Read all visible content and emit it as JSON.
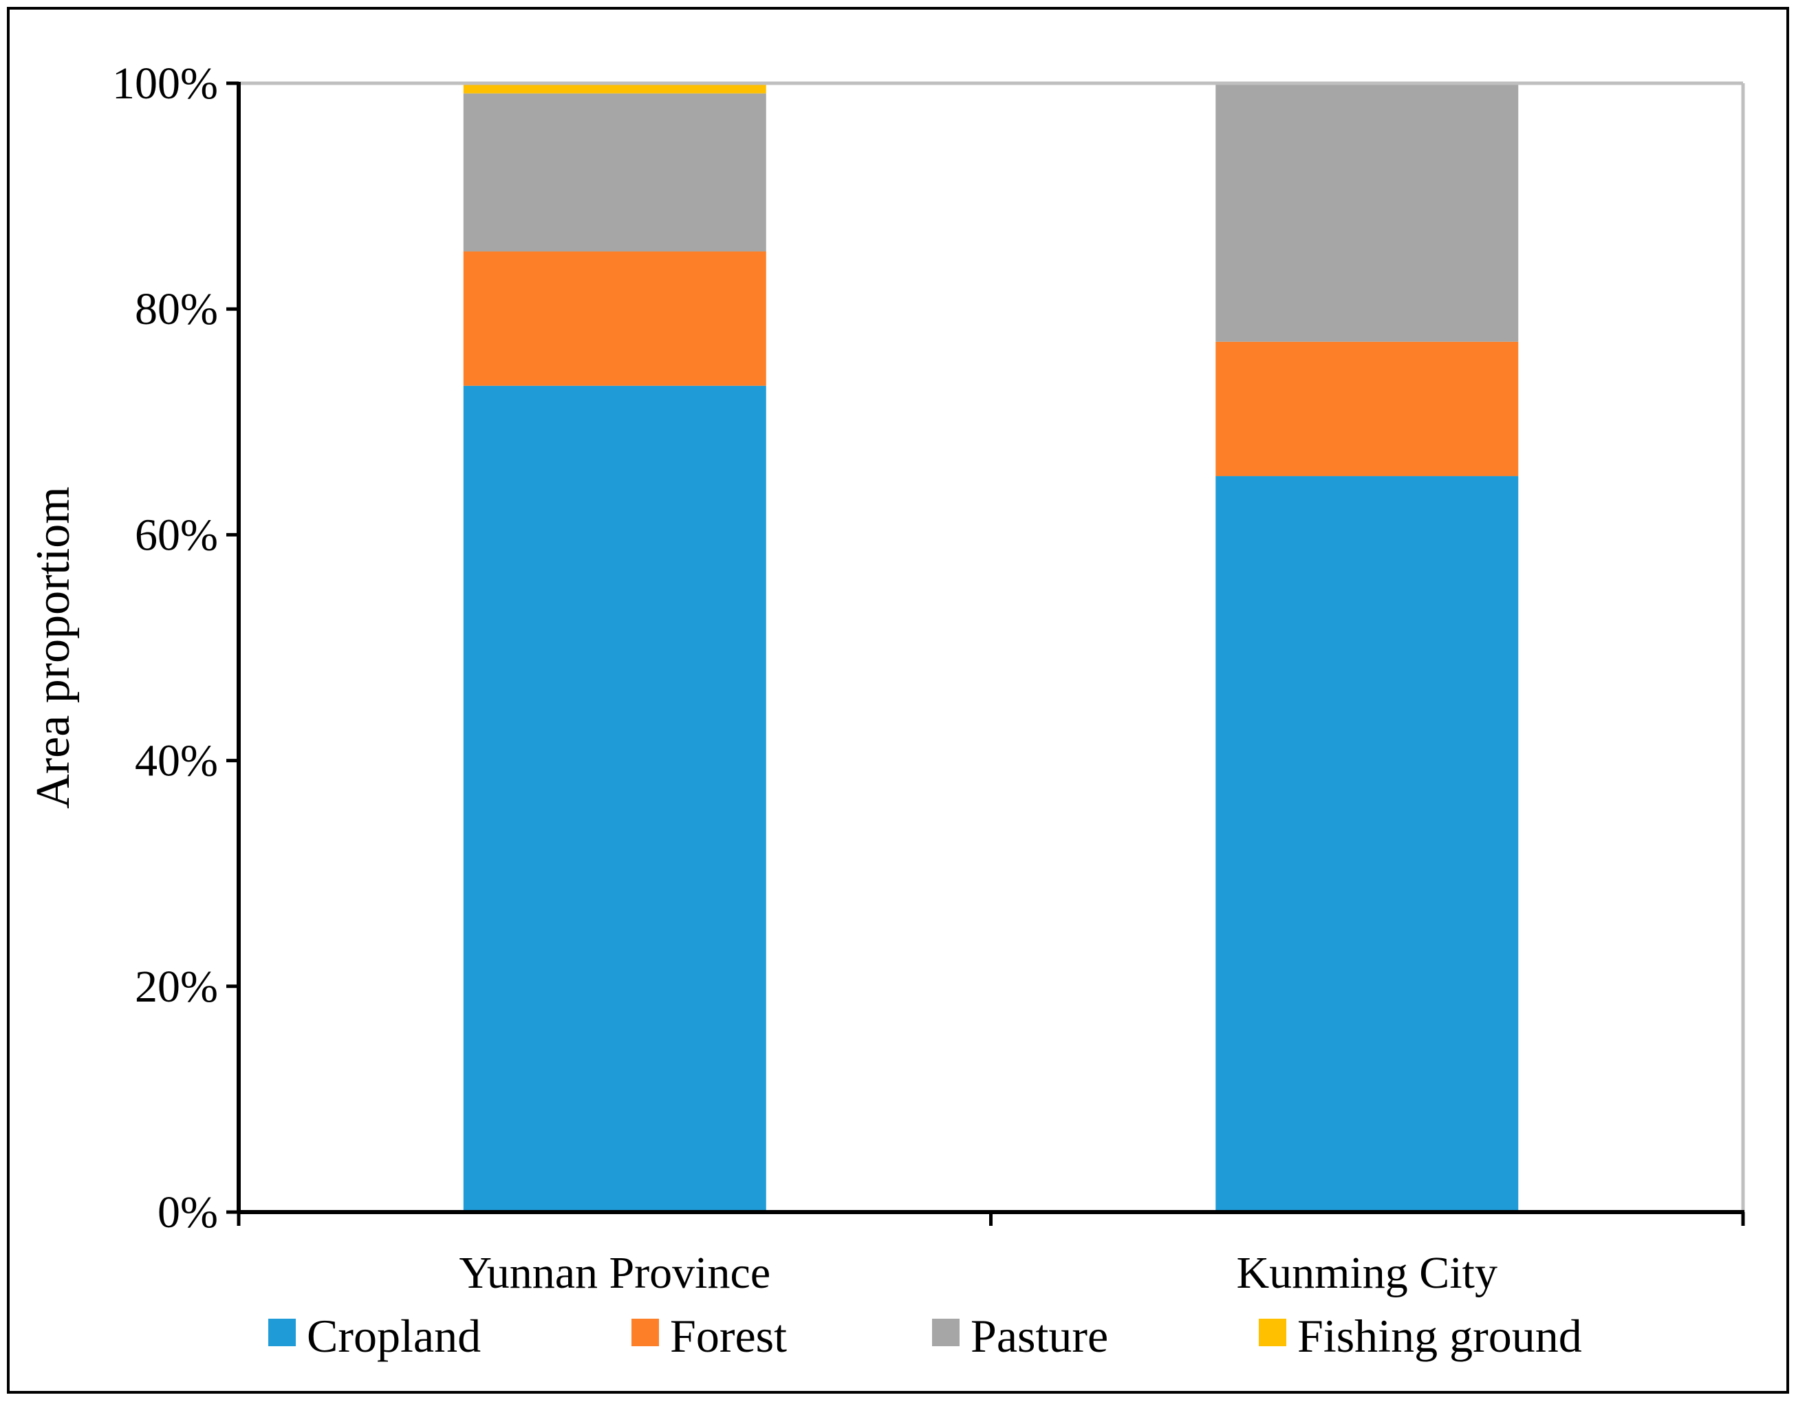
{
  "chart_data": {
    "type": "bar",
    "stacked": true,
    "percent_stacked": true,
    "title": "",
    "xlabel": "",
    "ylabel": "Area proportiom",
    "categories": [
      "Yunnan Province",
      "Kunming City"
    ],
    "series": [
      {
        "name": "Cropland",
        "color": "#1F9BD7",
        "values": [
          73.2,
          65.2
        ]
      },
      {
        "name": "Forest",
        "color": "#FD7F27",
        "values": [
          11.9,
          11.9
        ]
      },
      {
        "name": "Pasture",
        "color": "#A6A6A6",
        "values": [
          14.0,
          22.9
        ]
      },
      {
        "name": "Fishing ground",
        "color": "#FFC000",
        "values": [
          0.9,
          0.0
        ]
      }
    ],
    "ylim": [
      0,
      100
    ],
    "yticks": [
      0,
      20,
      40,
      60,
      80,
      100
    ],
    "ytick_labels": [
      "0%",
      "20%",
      "40%",
      "60%",
      "80%",
      "100%"
    ],
    "grid": false,
    "legend_position": "bottom"
  }
}
